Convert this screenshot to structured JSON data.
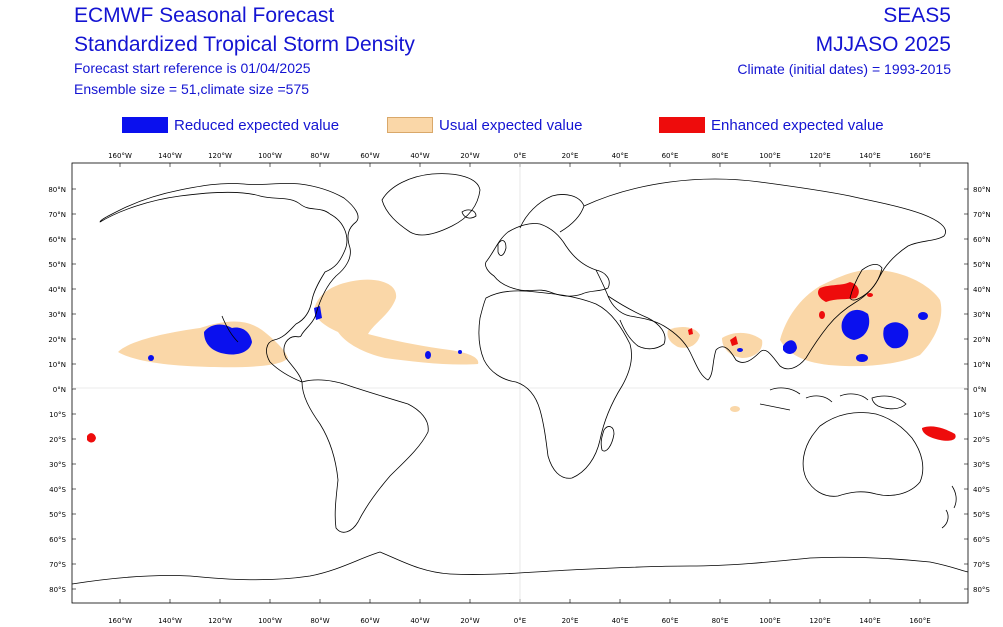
{
  "header": {
    "title_line1": "ECMWF Seasonal Forecast",
    "title_line2": "Standardized Tropical Storm Density",
    "forecast_start": "Forecast start reference is 01/04/2025",
    "ensemble": "Ensemble size = 51,climate size =575",
    "model": "SEAS5",
    "season": "MJJASO 2025",
    "climate": "Climate (initial dates) = 1993-2015"
  },
  "legend": [
    {
      "label": "Reduced expected value",
      "color": "#0a10ee"
    },
    {
      "label": "Usual expected value",
      "color": "#fad7a8"
    },
    {
      "label": "Enhanced expected value",
      "color": "#ee0c0c"
    }
  ],
  "axes": {
    "lon_labels": [
      "160°W",
      "140°W",
      "120°W",
      "100°W",
      "80°W",
      "60°W",
      "40°W",
      "20°W",
      "0°E",
      "20°E",
      "40°E",
      "60°E",
      "80°E",
      "100°E",
      "120°E",
      "140°E",
      "160°E"
    ],
    "lat_labels": [
      "80°N",
      "70°N",
      "60°N",
      "50°N",
      "40°N",
      "30°N",
      "20°N",
      "10°N",
      "0°N",
      "10°S",
      "20°S",
      "30°S",
      "40°S",
      "50°S",
      "60°S",
      "70°S",
      "80°S"
    ]
  },
  "colors": {
    "reduced": "#0a10ee",
    "usual": "#fad7a8",
    "enhanced": "#ee0c0c",
    "coast": "#000000",
    "text": "#1414d2"
  }
}
